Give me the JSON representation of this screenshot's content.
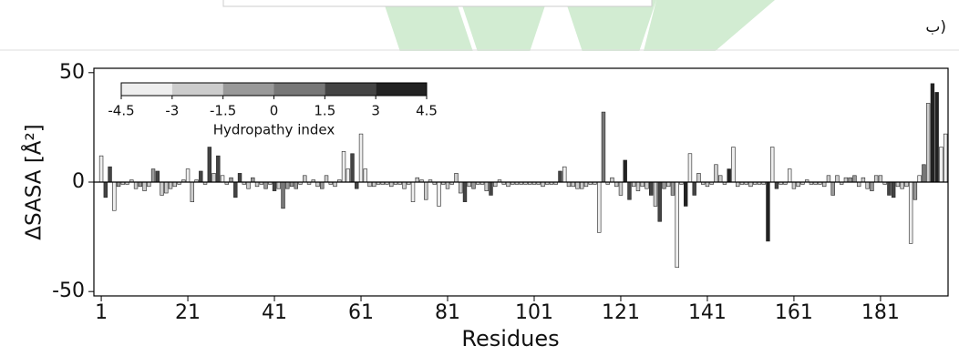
{
  "corner_label": "ب)",
  "chart_data": {
    "type": "bar",
    "xlabel": "Residues",
    "ylabel": "ΔSASA [Å²]",
    "x": [
      1,
      2,
      3,
      4,
      5,
      6,
      7,
      8,
      9,
      10,
      11,
      12,
      13,
      14,
      15,
      16,
      17,
      18,
      19,
      20,
      21,
      22,
      23,
      24,
      25,
      26,
      27,
      28,
      29,
      30,
      31,
      32,
      33,
      34,
      35,
      36,
      37,
      38,
      39,
      40,
      41,
      42,
      43,
      44,
      45,
      46,
      47,
      48,
      49,
      50,
      51,
      52,
      53,
      54,
      55,
      56,
      57,
      58,
      59,
      60,
      61,
      62,
      63,
      64,
      65,
      66,
      67,
      68,
      69,
      70,
      71,
      72,
      73,
      74,
      75,
      76,
      77,
      78,
      79,
      80,
      81,
      82,
      83,
      84,
      85,
      86,
      87,
      88,
      89,
      90,
      91,
      92,
      93,
      94,
      95,
      96,
      97,
      98,
      99,
      100,
      101,
      102,
      103,
      104,
      105,
      106,
      107,
      108,
      109,
      110,
      111,
      112,
      113,
      114,
      115,
      116,
      117,
      118,
      119,
      120,
      121,
      122,
      123,
      124,
      125,
      126,
      127,
      128,
      129,
      130,
      131,
      132,
      133,
      134,
      135,
      136,
      137,
      138,
      139,
      140,
      141,
      142,
      143,
      144,
      145,
      146,
      147,
      148,
      149,
      150,
      151,
      152,
      153,
      154,
      155,
      156,
      157,
      158,
      159,
      160,
      161,
      162,
      163,
      164,
      165,
      166,
      167,
      168,
      169,
      170,
      171,
      172,
      173,
      174,
      175,
      176,
      177,
      178,
      179,
      180,
      181,
      182,
      183,
      184,
      185,
      186,
      187,
      188,
      189,
      190,
      191,
      192,
      193,
      194,
      195,
      196
    ],
    "values": [
      12,
      -7,
      7,
      -13,
      -2,
      -1,
      -1,
      1,
      -3,
      -2,
      -4,
      -2,
      6,
      5,
      -6,
      -5,
      -3,
      -2,
      -1,
      1,
      6,
      -9,
      1,
      5,
      -1,
      16,
      4,
      12,
      3,
      -1,
      2,
      -7,
      4,
      -1,
      -3,
      2,
      -2,
      -1,
      -3,
      -1,
      -4,
      -3,
      -12,
      -3,
      -2,
      -3,
      -1,
      3,
      -1,
      1,
      -2,
      -3,
      3,
      -1,
      -2,
      1,
      14,
      6,
      13,
      -3,
      22,
      6,
      -2,
      -2,
      -1,
      -1,
      -1,
      -2,
      -1,
      -1,
      -3,
      -1,
      -9,
      2,
      1,
      -8,
      1,
      -1,
      -11,
      -1,
      -3,
      -1,
      4,
      -5,
      -9,
      -2,
      -3,
      -1,
      -1,
      -4,
      -6,
      -2,
      1,
      -1,
      -2,
      -1,
      -1,
      -1,
      -1,
      -1,
      -1,
      -1,
      -2,
      -1,
      -1,
      -1,
      5,
      7,
      -2,
      -2,
      -3,
      -3,
      -2,
      -1,
      -1,
      -23,
      32,
      -1,
      2,
      -2,
      -6,
      10,
      -8,
      -2,
      -4,
      -2,
      -3,
      -6,
      -11,
      -18,
      -3,
      -2,
      -6,
      -39,
      -1,
      -11,
      13,
      -6,
      4,
      -1,
      -2,
      -1,
      8,
      3,
      -1,
      6,
      16,
      -2,
      -1,
      -1,
      -2,
      -1,
      -1,
      -1,
      -27,
      16,
      -3,
      -1,
      -1,
      6,
      -3,
      -2,
      -1,
      1,
      -1,
      -1,
      -1,
      -2,
      3,
      -6,
      3,
      -1,
      2,
      2,
      3,
      -2,
      2,
      -3,
      -4,
      3,
      3,
      -1,
      -6,
      -7,
      -2,
      -3,
      -2,
      -28,
      -8,
      3,
      8,
      36,
      45,
      41,
      16,
      22
    ],
    "colors": [
      "#eee",
      "#444",
      "#444",
      "#eee",
      "#999",
      "#ccc",
      "#ccc",
      "#ccc",
      "#ccc",
      "#999",
      "#ccc",
      "#ccc",
      "#999",
      "#444",
      "#ccc",
      "#ccc",
      "#ccc",
      "#ccc",
      "#ccc",
      "#ccc",
      "#eee",
      "#ccc",
      "#ccc",
      "#444",
      "#ccc",
      "#444",
      "#ccc",
      "#444",
      "#eee",
      "#ccc",
      "#999",
      "#444",
      "#444",
      "#ccc",
      "#ccc",
      "#999",
      "#ccc",
      "#ccc",
      "#999",
      "#ccc",
      "#444",
      "#ccc",
      "#777",
      "#999",
      "#999",
      "#999",
      "#ccc",
      "#ccc",
      "#ccc",
      "#ccc",
      "#ccc",
      "#999",
      "#ccc",
      "#ccc",
      "#ccc",
      "#ccc",
      "#eee",
      "#eee",
      "#444",
      "#444",
      "#eee",
      "#eee",
      "#ccc",
      "#ccc",
      "#ccc",
      "#ccc",
      "#ccc",
      "#ccc",
      "#ccc",
      "#ccc",
      "#ccc",
      "#ccc",
      "#eee",
      "#ccc",
      "#ccc",
      "#ccc",
      "#ccc",
      "#ccc",
      "#eee",
      "#ccc",
      "#ccc",
      "#ccc",
      "#ccc",
      "#ccc",
      "#444",
      "#ccc",
      "#999",
      "#ccc",
      "#ccc",
      "#ccc",
      "#444",
      "#ccc",
      "#ccc",
      "#ccc",
      "#ccc",
      "#ccc",
      "#ccc",
      "#ccc",
      "#ccc",
      "#ccc",
      "#ccc",
      "#ccc",
      "#ccc",
      "#ccc",
      "#ccc",
      "#ccc",
      "#444",
      "#eee",
      "#ccc",
      "#ccc",
      "#ccc",
      "#ccc",
      "#ccc",
      "#ccc",
      "#ccc",
      "#eee",
      "#777",
      "#ccc",
      "#ccc",
      "#ccc",
      "#ccc",
      "#222",
      "#444",
      "#ccc",
      "#ccc",
      "#ccc",
      "#ccc",
      "#444",
      "#ccc",
      "#444",
      "#999",
      "#ccc",
      "#999",
      "#eee",
      "#ccc",
      "#222",
      "#eee",
      "#444",
      "#ccc",
      "#ccc",
      "#ccc",
      "#ccc",
      "#ccc",
      "#ccc",
      "#ccc",
      "#222",
      "#eee",
      "#ccc",
      "#ccc",
      "#ccc",
      "#ccc",
      "#ccc",
      "#ccc",
      "#ccc",
      "#222",
      "#eee",
      "#444",
      "#ccc",
      "#ccc",
      "#eee",
      "#ccc",
      "#ccc",
      "#ccc",
      "#ccc",
      "#ccc",
      "#ccc",
      "#ccc",
      "#ccc",
      "#ccc",
      "#999",
      "#ccc",
      "#ccc",
      "#ccc",
      "#999",
      "#999",
      "#ccc",
      "#ccc",
      "#ccc",
      "#999",
      "#ccc",
      "#ccc",
      "#ccc",
      "#444",
      "#444",
      "#ccc",
      "#ccc",
      "#ccc",
      "#eee",
      "#999",
      "#eee",
      "#777",
      "#ccc",
      "#222",
      "#222",
      "#eee",
      "#eee"
    ],
    "xlim": [
      -0.7,
      196.6
    ],
    "xticks": [
      1,
      21,
      41,
      61,
      81,
      101,
      121,
      141,
      161,
      181
    ],
    "ylim": [
      -52,
      52
    ],
    "yticks": [
      -50,
      0,
      50
    ],
    "colorbar": {
      "label": "Hydropathy index",
      "lim": [
        -4.5,
        4.5
      ],
      "ticks": [
        -4.5,
        -3,
        -1.5,
        0,
        1.5,
        3,
        4.5
      ],
      "colors": [
        "#eee",
        "#ccc",
        "#999",
        "#777",
        "#444",
        "#222"
      ]
    }
  }
}
